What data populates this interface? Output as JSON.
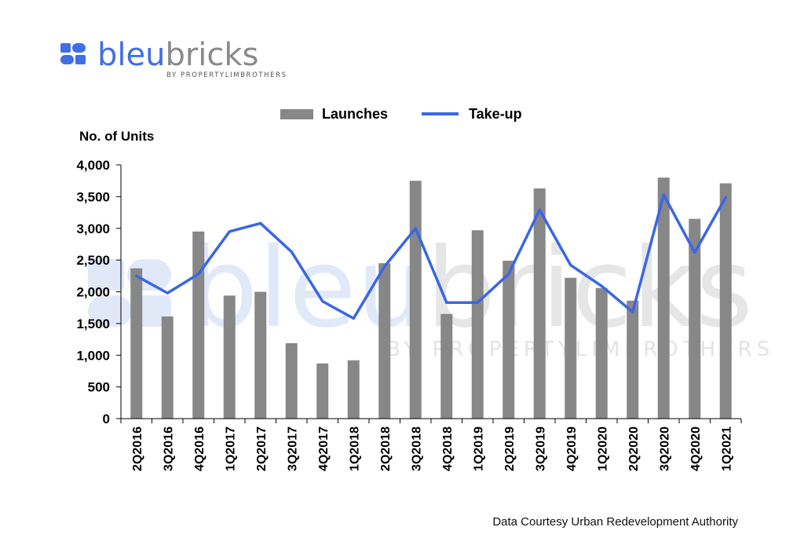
{
  "brand": {
    "name_part1": "bleu",
    "name_part2": "bricks",
    "tagline": "BY PROPERTYLIMBROTHERS",
    "blue": "#3F6FE6",
    "gray": "#8A8A8A"
  },
  "colors": {
    "bar": "#878787",
    "line": "#3A66E6"
  },
  "source_note": "Data Courtesy Urban Redevelopment Authority",
  "chart_data": {
    "type": "bar",
    "ylabel": "No. of Units",
    "ylim": [
      0,
      4000
    ],
    "yticks": [
      0,
      500,
      1000,
      1500,
      2000,
      2500,
      3000,
      3500,
      4000
    ],
    "ytick_labels": [
      "0",
      "500",
      "1,000",
      "1,500",
      "2,000",
      "2,500",
      "3,000",
      "3,500",
      "4,000"
    ],
    "legend_position": "top",
    "grid": false,
    "categories": [
      "2Q2016",
      "3Q2016",
      "4Q2016",
      "1Q2017",
      "2Q2017",
      "3Q2017",
      "4Q2017",
      "1Q2018",
      "2Q2018",
      "3Q2018",
      "4Q2018",
      "1Q2019",
      "2Q2019",
      "3Q2019",
      "4Q2019",
      "1Q2020",
      "2Q2020",
      "3Q2020",
      "4Q2020",
      "1Q2021"
    ],
    "series": [
      {
        "name": "Launches",
        "type": "bar",
        "values": [
          2370,
          1610,
          2950,
          1940,
          2000,
          1190,
          870,
          920,
          2450,
          3750,
          1650,
          2970,
          2490,
          3630,
          2220,
          2060,
          1860,
          3800,
          3150,
          3710
        ]
      },
      {
        "name": "Take-up",
        "type": "line",
        "values": [
          2250,
          1980,
          2280,
          2950,
          3080,
          2630,
          1850,
          1580,
          2400,
          3000,
          1830,
          1830,
          2280,
          3290,
          2420,
          2090,
          1680,
          3530,
          2620,
          3490
        ]
      }
    ]
  }
}
